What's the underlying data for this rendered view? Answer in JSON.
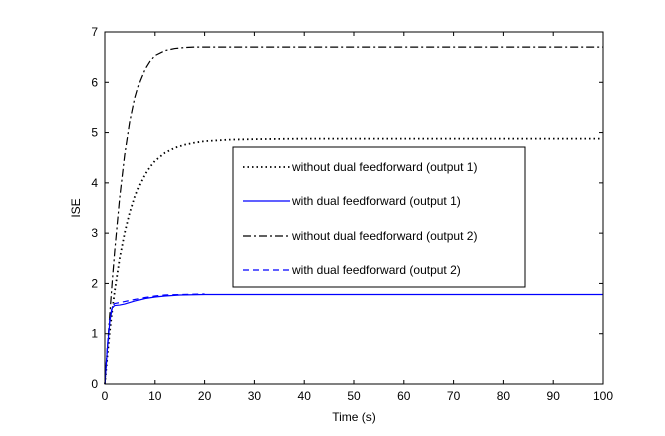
{
  "chart_data": {
    "type": "line",
    "title": "",
    "xlabel": "Time (s)",
    "ylabel": "ISE",
    "xlim": [
      0,
      100
    ],
    "ylim": [
      0,
      7
    ],
    "xticks": [
      0,
      10,
      20,
      30,
      40,
      50,
      60,
      70,
      80,
      90,
      100
    ],
    "yticks": [
      0,
      1,
      2,
      3,
      4,
      5,
      6,
      7
    ],
    "grid": false,
    "legend_position": "center-right",
    "series": [
      {
        "name": "without dual feedforward (output 1)",
        "color": "#000000",
        "style": "dotted",
        "x": [
          0,
          0.5,
          1,
          1.5,
          2,
          3,
          4,
          5,
          6,
          7,
          8,
          9,
          10,
          12,
          14,
          16,
          18,
          20,
          25,
          30,
          40,
          50,
          60,
          70,
          80,
          90,
          100
        ],
        "y": [
          0,
          0.55,
          1.05,
          1.48,
          1.85,
          2.5,
          3.0,
          3.4,
          3.72,
          3.97,
          4.17,
          4.32,
          4.44,
          4.6,
          4.7,
          4.76,
          4.8,
          4.83,
          4.86,
          4.87,
          4.88,
          4.88,
          4.88,
          4.88,
          4.88,
          4.88,
          4.88
        ]
      },
      {
        "name": "with dual feedforward (output 1)",
        "color": "#0000ff",
        "style": "solid",
        "x": [
          0,
          0.5,
          1,
          1.5,
          2,
          3,
          4,
          5,
          6,
          8,
          10,
          12,
          15,
          20,
          25,
          30,
          40,
          50,
          60,
          70,
          80,
          90,
          100
        ],
        "y": [
          0,
          0.7,
          1.25,
          1.52,
          1.56,
          1.57,
          1.59,
          1.62,
          1.65,
          1.7,
          1.73,
          1.75,
          1.77,
          1.78,
          1.78,
          1.78,
          1.78,
          1.78,
          1.78,
          1.78,
          1.78,
          1.78,
          1.78
        ]
      },
      {
        "name": "without dual feedforward (output 2)",
        "color": "#000000",
        "style": "dashdot",
        "x": [
          0,
          0.5,
          1,
          1.5,
          2,
          3,
          4,
          5,
          6,
          7,
          8,
          9,
          10,
          12,
          14,
          16,
          18,
          20,
          25,
          30,
          40,
          50,
          60,
          70,
          80,
          90,
          100
        ],
        "y": [
          0,
          0.7,
          1.4,
          2.05,
          2.65,
          3.7,
          4.55,
          5.2,
          5.68,
          6.02,
          6.26,
          6.42,
          6.53,
          6.63,
          6.67,
          6.69,
          6.7,
          6.7,
          6.7,
          6.7,
          6.7,
          6.7,
          6.7,
          6.7,
          6.7,
          6.7,
          6.7
        ]
      },
      {
        "name": "with dual feedforward (output 2)",
        "color": "#0000ff",
        "style": "dashed",
        "x": [
          0,
          0.5,
          1,
          1.5,
          2,
          3,
          4,
          5,
          6,
          8,
          10,
          12,
          15,
          20
        ],
        "y": [
          0,
          0.75,
          1.3,
          1.55,
          1.6,
          1.62,
          1.64,
          1.66,
          1.68,
          1.72,
          1.75,
          1.77,
          1.78,
          1.79
        ]
      }
    ]
  }
}
